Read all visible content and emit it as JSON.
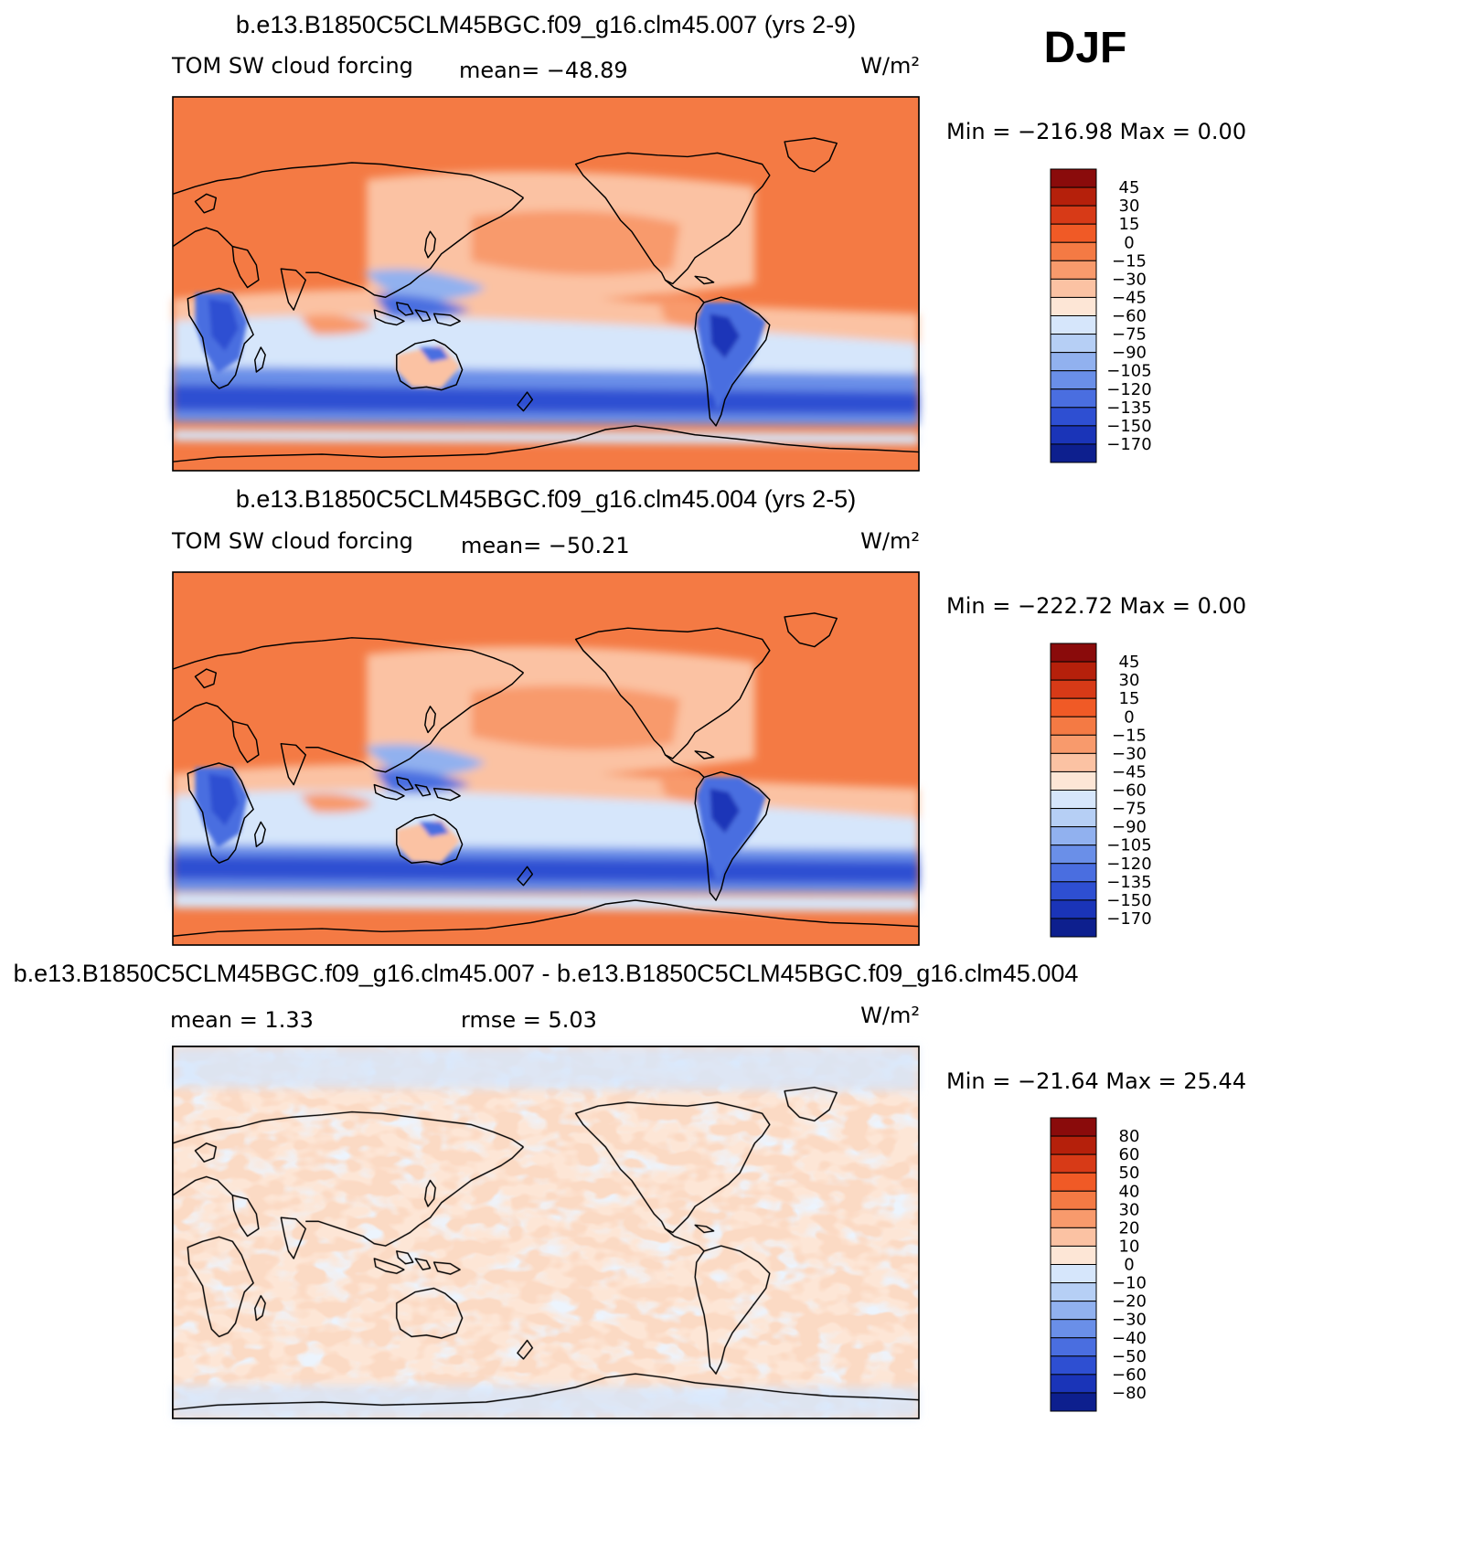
{
  "season": "DJF",
  "panels": [
    {
      "title": "b.e13.B1850C5CLM45BGC.f09_g16.clm45.007 (yrs 2-9)",
      "variable": "TOM SW cloud forcing",
      "stat1": "mean= −48.89",
      "stat2": "",
      "units": "W/m²",
      "minmax": "Min = −216.98 Max =    0.00",
      "field": "model_a",
      "colorbar": {
        "labels": [
          "45",
          "30",
          "15",
          "0",
          "−15",
          "−30",
          "−45",
          "−60",
          "−75",
          "−90",
          "−105",
          "−120",
          "−135",
          "−150",
          "−170"
        ],
        "colors": [
          "#8a0b0b",
          "#b5200b",
          "#d73a17",
          "#f05a26",
          "#f47a44",
          "#f89a6c",
          "#fbc2a3",
          "#fde6d6",
          "#d6e6fb",
          "#b6cff5",
          "#91b1ef",
          "#6a8fe8",
          "#4a6ee0",
          "#2e4fd2",
          "#1a34b8",
          "#0d1f8e"
        ]
      }
    },
    {
      "title": "b.e13.B1850C5CLM45BGC.f09_g16.clm45.004 (yrs 2-5)",
      "variable": "TOM SW cloud forcing",
      "stat1": "mean= −50.21",
      "stat2": "",
      "units": "W/m²",
      "minmax": "Min = −222.72 Max =    0.00",
      "field": "model_b",
      "colorbar": {
        "labels": [
          "45",
          "30",
          "15",
          "0",
          "−15",
          "−30",
          "−45",
          "−60",
          "−75",
          "−90",
          "−105",
          "−120",
          "−135",
          "−150",
          "−170"
        ],
        "colors": [
          "#8a0b0b",
          "#b5200b",
          "#d73a17",
          "#f05a26",
          "#f47a44",
          "#f89a6c",
          "#fbc2a3",
          "#fde6d6",
          "#d6e6fb",
          "#b6cff5",
          "#91b1ef",
          "#6a8fe8",
          "#4a6ee0",
          "#2e4fd2",
          "#1a34b8",
          "#0d1f8e"
        ]
      }
    },
    {
      "title": "b.e13.B1850C5CLM45BGC.f09_g16.clm45.007 - b.e13.B1850C5CLM45BGC.f09_g16.clm45.004",
      "variable": "",
      "stat1": "mean =    1.33",
      "stat2": "rmse =    5.03",
      "units": "W/m²",
      "minmax": "Min = −21.64 Max =   25.44",
      "field": "difference",
      "colorbar": {
        "labels": [
          "80",
          "60",
          "50",
          "40",
          "30",
          "20",
          "10",
          "0",
          "−10",
          "−20",
          "−30",
          "−40",
          "−50",
          "−60",
          "−80"
        ],
        "colors": [
          "#8a0b0b",
          "#b5200b",
          "#d73a17",
          "#f05a26",
          "#f47a44",
          "#f89a6c",
          "#fbc2a3",
          "#fde6d6",
          "#d6e6fb",
          "#b6cff5",
          "#91b1ef",
          "#6a8fe8",
          "#4a6ee0",
          "#2e4fd2",
          "#1a34b8",
          "#0d1f8e"
        ]
      }
    }
  ]
}
